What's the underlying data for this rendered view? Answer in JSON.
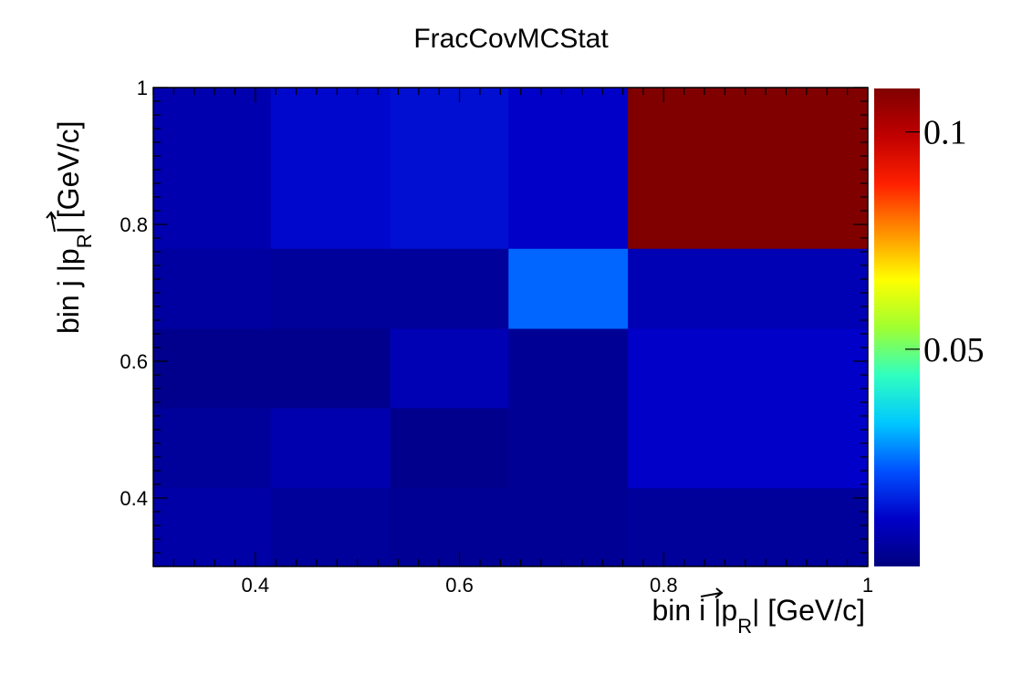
{
  "chart_data": {
    "type": "heatmap",
    "title": "FracCovMCStat",
    "xlabel": {
      "prefix": "bin i |",
      "var": "p",
      "sub": "R",
      "suffix": "| [GeV/c]"
    },
    "ylabel": {
      "prefix": "bin j |",
      "var": "p",
      "sub": "R",
      "suffix": "| [GeV/c]"
    },
    "xlim": [
      0.3,
      1.0
    ],
    "ylim": [
      0.3,
      1.0
    ],
    "x_edges": [
      0.3,
      0.415,
      0.532,
      0.648,
      0.765,
      1.0
    ],
    "y_edges": [
      0.3,
      0.415,
      0.532,
      0.648,
      0.765,
      1.0
    ],
    "x_ticks": [
      0.4,
      0.6,
      0.8,
      1.0
    ],
    "x_tick_labels": [
      "0.4",
      "0.6",
      "0.8",
      "1"
    ],
    "y_ticks": [
      0.4,
      0.6,
      0.8,
      1.0
    ],
    "y_tick_labels": [
      "0.4",
      "0.6",
      "0.8",
      "1"
    ],
    "z_range": [
      0.0,
      0.11
    ],
    "z_ticks": [
      0.05,
      0.1
    ],
    "z_tick_labels": [
      "0.05",
      "0.1"
    ],
    "colormap": [
      "#000080",
      "#0000c8",
      "#0050ff",
      "#00c8ff",
      "#30ffc0",
      "#a0ff30",
      "#ffff00",
      "#ff9000",
      "#ff2000",
      "#c00000",
      "#800000"
    ],
    "values": [
      [
        0.006,
        0.004,
        0.003,
        0.003,
        0.004
      ],
      [
        0.004,
        0.007,
        0.002,
        0.003,
        0.011
      ],
      [
        0.002,
        0.002,
        0.008,
        0.003,
        0.011
      ],
      [
        0.005,
        0.004,
        0.004,
        0.024,
        0.008
      ],
      [
        0.007,
        0.012,
        0.013,
        0.011,
        0.111
      ]
    ]
  }
}
